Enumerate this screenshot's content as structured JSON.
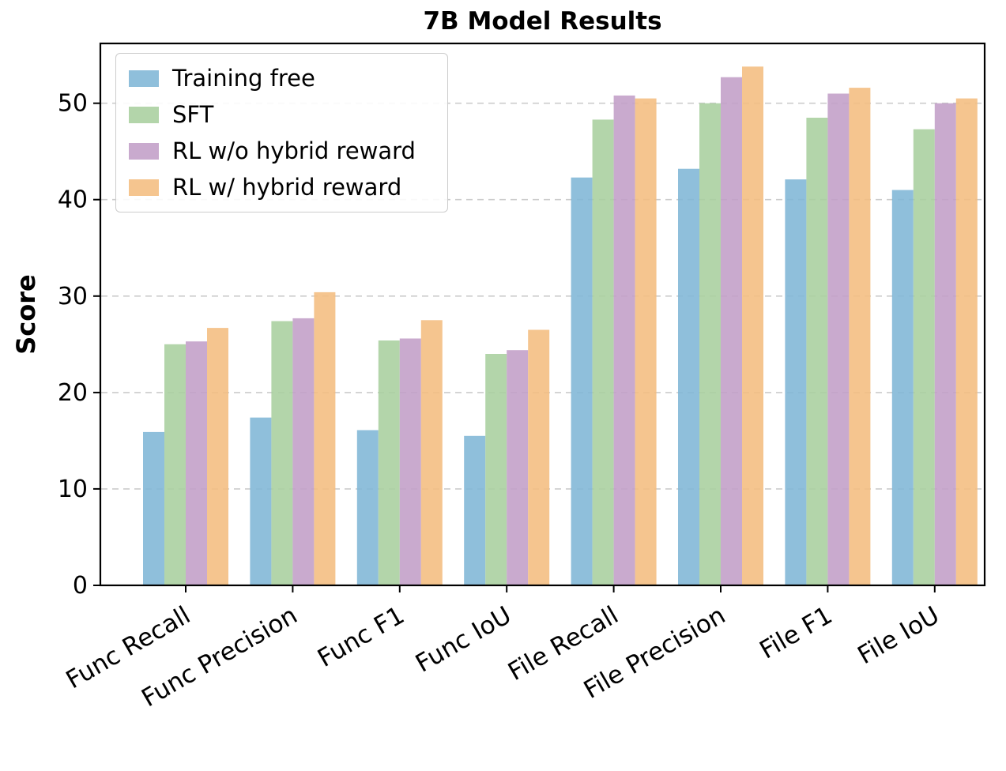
{
  "chart_data": {
    "type": "bar",
    "title": "7B Model Results",
    "xlabel": "",
    "ylabel": "Score",
    "categories": [
      "Func Recall",
      "Func Precision",
      "Func F1",
      "Func IoU",
      "File Recall",
      "File Precision",
      "File F1",
      "File IoU"
    ],
    "series": [
      {
        "name": "Training free",
        "color": "#7fb6d6",
        "values": [
          15.9,
          17.4,
          16.1,
          15.5,
          42.3,
          43.2,
          42.1,
          41.0
        ]
      },
      {
        "name": "SFT",
        "color": "#a8cf9e",
        "values": [
          25.0,
          27.4,
          25.4,
          24.0,
          48.3,
          50.0,
          48.5,
          47.3
        ]
      },
      {
        "name": "RL w/o hybrid reward",
        "color": "#c29ec7",
        "values": [
          25.3,
          27.7,
          25.6,
          24.4,
          50.8,
          52.7,
          51.0,
          50.0
        ]
      },
      {
        "name": "RL w/ hybrid reward",
        "color": "#f4bd80",
        "values": [
          26.7,
          30.4,
          27.5,
          26.5,
          50.5,
          53.8,
          51.6,
          50.5
        ]
      }
    ],
    "ylim": [
      0,
      56.2
    ],
    "yticks": [
      0,
      10,
      20,
      30,
      40,
      50
    ],
    "grid": "dashed-horizontal",
    "legend_position": "upper-left"
  }
}
